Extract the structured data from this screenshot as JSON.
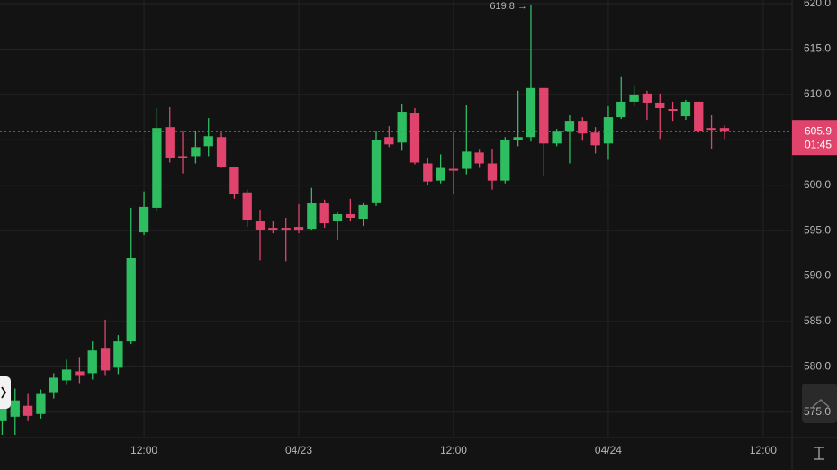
{
  "chart_data": {
    "type": "candlestick",
    "x": [
      1,
      2,
      3,
      4,
      5,
      6,
      7,
      8,
      9,
      10,
      11,
      12,
      13,
      14,
      15,
      16,
      17,
      18,
      19,
      20,
      21,
      22,
      23,
      24,
      25,
      26,
      27,
      28,
      29,
      30,
      31,
      32,
      33,
      34,
      35,
      36,
      37,
      38,
      39,
      40,
      41,
      42,
      43,
      44,
      45,
      46,
      47,
      48,
      49,
      50,
      51,
      52,
      53,
      54,
      55,
      56,
      57
    ],
    "open": [
      574.0,
      574.5,
      575.7,
      574.8,
      577.2,
      578.5,
      579.5,
      579.3,
      582.0,
      579.9,
      582.8,
      594.8,
      597.5,
      606.4,
      603.2,
      603.2,
      604.3,
      605.3,
      602.0,
      599.2,
      596.0,
      595.3,
      595.3,
      595.4,
      595.2,
      598.0,
      596.0,
      596.8,
      596.3,
      598.1,
      605.3,
      604.7,
      608.0,
      602.4,
      600.5,
      601.8,
      601.8,
      603.6,
      602.4,
      600.5,
      605.0,
      605.3,
      610.7,
      604.6,
      605.9,
      607.1,
      605.8,
      604.6,
      607.5,
      609.2,
      610.1,
      609.1,
      608.4,
      607.6,
      609.2,
      606.3,
      606.3
    ],
    "high": [
      576.0,
      577.6,
      577.0,
      577.5,
      579.3,
      580.8,
      581.0,
      582.8,
      585.2,
      583.5,
      597.5,
      599.3,
      608.5,
      608.6,
      605.9,
      606.0,
      607.4,
      605.8,
      602.0,
      599.5,
      597.3,
      596.0,
      596.4,
      597.9,
      599.7,
      598.4,
      597.1,
      598.5,
      598.1,
      606.0,
      606.5,
      609.0,
      608.5,
      603.0,
      603.4,
      605.8,
      608.8,
      603.9,
      604.0,
      605.3,
      610.4,
      619.8,
      610.7,
      606.2,
      607.7,
      607.5,
      606.4,
      608.7,
      612.0,
      611.0,
      610.4,
      610.1,
      609.2,
      609.4,
      609.2,
      607.7,
      606.6
    ],
    "low": [
      572.5,
      572.5,
      574.0,
      574.3,
      576.5,
      578.0,
      578.2,
      578.6,
      579.0,
      579.2,
      582.5,
      594.5,
      597.2,
      602.5,
      601.3,
      602.4,
      603.2,
      601.9,
      598.5,
      595.4,
      591.7,
      594.7,
      591.6,
      594.7,
      595.0,
      595.3,
      594.0,
      596.0,
      595.5,
      597.7,
      604.2,
      603.8,
      602.3,
      600.0,
      600.2,
      599.0,
      601.2,
      601.9,
      599.5,
      600.2,
      604.3,
      604.8,
      601.0,
      604.3,
      602.4,
      604.9,
      603.5,
      602.8,
      607.3,
      608.7,
      607.2,
      605.1,
      607.1,
      607.2,
      605.8,
      604.0,
      605.1
    ],
    "close": [
      575.5,
      576.3,
      574.6,
      577.0,
      578.8,
      579.7,
      579.0,
      581.8,
      579.6,
      582.8,
      592.0,
      597.6,
      606.3,
      603.0,
      603.0,
      604.2,
      605.4,
      602.0,
      599.0,
      596.2,
      595.1,
      595.0,
      595.0,
      595.0,
      598.0,
      595.8,
      596.8,
      596.4,
      597.8,
      605.0,
      604.5,
      608.1,
      602.5,
      600.4,
      601.9,
      601.6,
      603.7,
      602.4,
      600.5,
      605.0,
      605.3,
      610.7,
      604.6,
      605.9,
      607.1,
      605.7,
      604.4,
      607.5,
      609.2,
      610.0,
      609.1,
      608.5,
      608.2,
      609.2,
      606.0,
      606.1,
      605.9
    ],
    "up_color": "#2ebd60",
    "down_color": "#e0446c",
    "xlim": [
      0.83,
      62.24
    ],
    "xticks": [
      {
        "value": 12,
        "label": "12:00"
      },
      {
        "value": 24,
        "label": "04/23"
      },
      {
        "value": 36,
        "label": "12:00"
      },
      {
        "value": 48,
        "label": "04/24"
      },
      {
        "value": 60,
        "label": "12:00"
      }
    ],
    "ylim": [
      572.3,
      620.4
    ],
    "yticks": [
      {
        "value": 575,
        "label": "575.0"
      },
      {
        "value": 580,
        "label": "580.0"
      },
      {
        "value": 585,
        "label": "585.0"
      },
      {
        "value": 590,
        "label": "590.0"
      },
      {
        "value": 595,
        "label": "595.0"
      },
      {
        "value": 600,
        "label": "600.0"
      },
      {
        "value": 605,
        "label": "605.0"
      },
      {
        "value": 610,
        "label": "610.0"
      },
      {
        "value": 615,
        "label": "615.0"
      },
      {
        "value": 620,
        "label": "620.0"
      }
    ],
    "grid": true,
    "max_label": "619.8 →",
    "last_price": 605.9,
    "countdown": "01:45"
  }
}
